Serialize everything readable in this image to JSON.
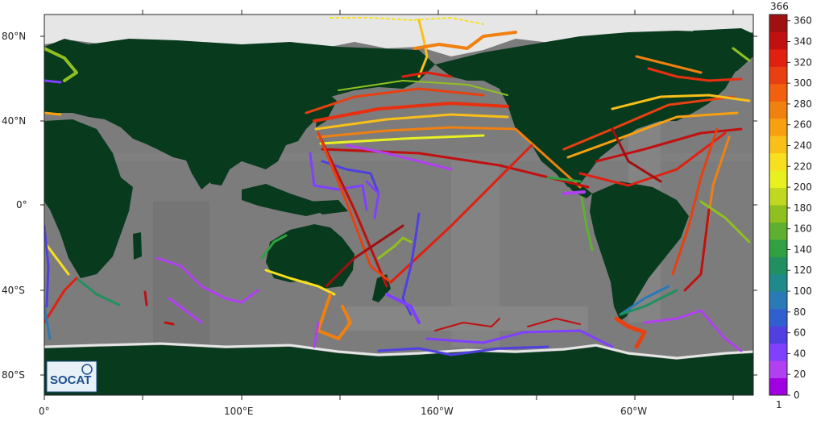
{
  "map": {
    "lat_labels": [
      "80°N",
      "40°N",
      "0°",
      "40°S",
      "80°S"
    ],
    "lon_labels": [
      "0°",
      "100°E",
      "160°W",
      "60°W"
    ],
    "logo_text": "SOCAT"
  },
  "colorbar": {
    "max_label": "366",
    "tick_labels": [
      "360",
      "340",
      "320",
      "300",
      "280",
      "260",
      "240",
      "220",
      "200",
      "180",
      "160",
      "140",
      "120",
      "100",
      "80",
      "60",
      "40",
      "20",
      "0"
    ],
    "bottom_label": "1",
    "colors": [
      "#a000e0",
      "#b040f0",
      "#8040ff",
      "#5040e0",
      "#3060d0",
      "#2a7ab8",
      "#208a8a",
      "#209060",
      "#30a040",
      "#60b030",
      "#90c020",
      "#c0d820",
      "#e8f020",
      "#f8e020",
      "#f8c018",
      "#f8a010",
      "#f08010",
      "#f06010",
      "#e84010",
      "#e02010",
      "#c01010",
      "#a01010"
    ]
  },
  "colors": {
    "land": "#083a1e",
    "ocean": "#7c7c7c",
    "ice": "#e9e9e9"
  }
}
